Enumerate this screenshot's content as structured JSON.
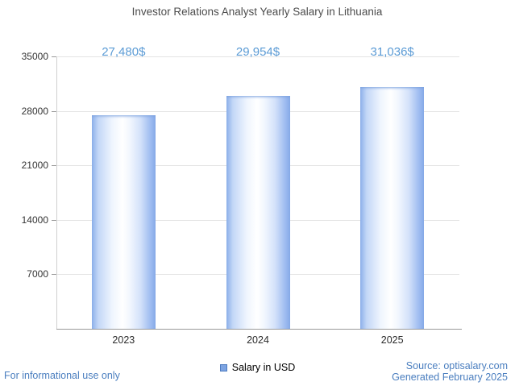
{
  "chart_data": {
    "type": "bar",
    "title": "Investor Relations Analyst Yearly Salary in Lithuania",
    "categories": [
      "2023",
      "2024",
      "2025"
    ],
    "values": [
      27480,
      29954,
      31036
    ],
    "value_labels": [
      "27,480$",
      "29,954$",
      "31,036$"
    ],
    "ylim": [
      0,
      35000
    ],
    "yticks": [
      7000,
      14000,
      21000,
      28000,
      35000
    ],
    "grid": true,
    "legend": [
      {
        "label": "Salary in USD",
        "color": "#7da4e2"
      }
    ],
    "legend_position": "bottom"
  },
  "footer": {
    "disclaimer": "For informational use only",
    "source": "Source: optisalary.com",
    "generated": "Generated February 2025"
  },
  "colors": {
    "accent_text": "#5b9bd5",
    "footer_text": "#4a7ebf",
    "title_text": "#4d4d4d",
    "grid": "#e4e4e4",
    "axis": "#9a9a9a",
    "legend_swatch": "#7da4e2",
    "bar_edge": "#86a9e7",
    "bar_center": "#ffffff"
  }
}
